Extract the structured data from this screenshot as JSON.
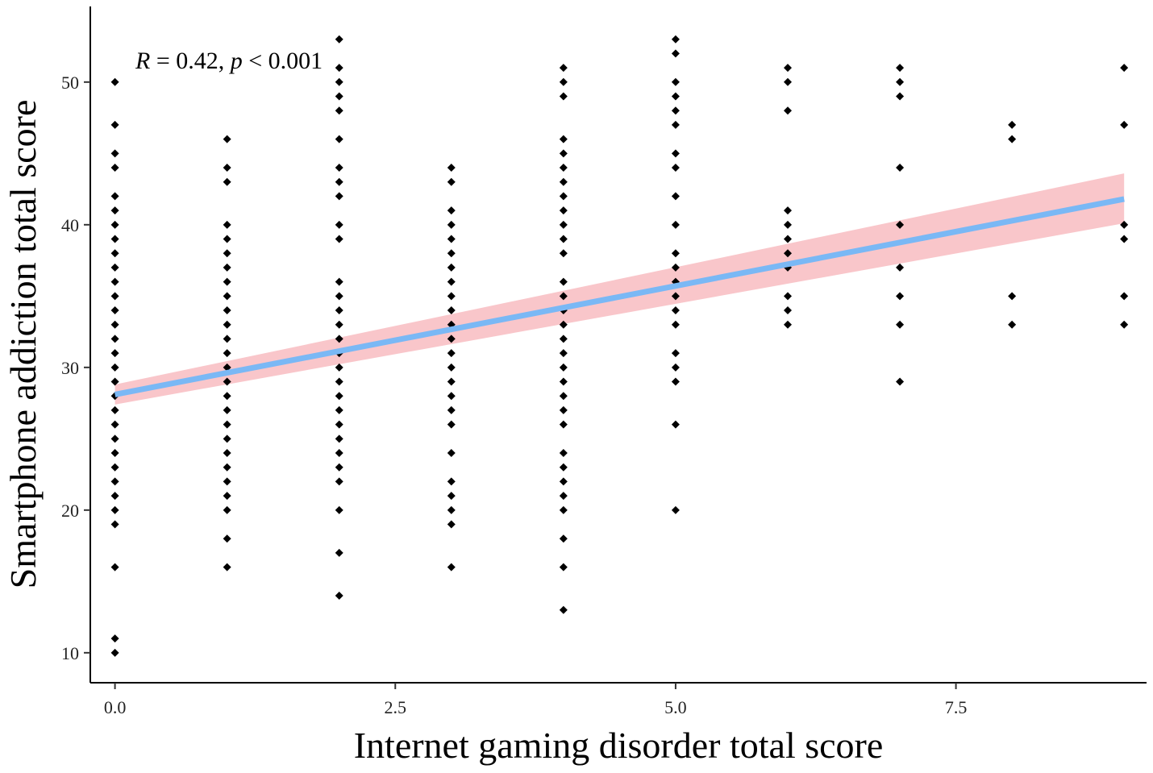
{
  "chart_data": {
    "type": "scatter",
    "xlabel": "Internet gaming disorder total score",
    "ylabel": "Smartphone addiction total score",
    "annotation": {
      "r_symbol": "R",
      "r_text": " = 0.42, ",
      "p_symbol": "p",
      "p_text": " < 0.001"
    },
    "xlim": [
      -0.22,
      9.2
    ],
    "ylim": [
      7.9,
      55.3
    ],
    "x_ticks": [
      0,
      2.5,
      5,
      7.5
    ],
    "x_tick_labels": [
      "0.0",
      "2.5",
      "5.0",
      "7.5"
    ],
    "y_ticks": [
      10,
      20,
      30,
      40,
      50
    ],
    "y_tick_labels": [
      "10",
      "20",
      "30",
      "40",
      "50"
    ],
    "grid": false,
    "point_color": "#000000",
    "line_color": "#7ab8f5",
    "band_color": "#f8c0c4",
    "fit_line": {
      "x": [
        0,
        9
      ],
      "y": [
        28.1,
        41.8
      ]
    },
    "confidence_band": {
      "x": [
        0,
        9
      ],
      "lower": [
        27.4,
        40.1
      ],
      "upper": [
        28.8,
        43.6
      ]
    },
    "points": [
      {
        "x": 0,
        "y": [
          10,
          11,
          16,
          19,
          20,
          21,
          22,
          23,
          24,
          25,
          26,
          27,
          28,
          29,
          30,
          31,
          32,
          33,
          34,
          35,
          36,
          37,
          38,
          39,
          40,
          41,
          42,
          44,
          45,
          47,
          50
        ]
      },
      {
        "x": 1,
        "y": [
          16,
          18,
          20,
          21,
          22,
          23,
          24,
          25,
          26,
          27,
          28,
          29,
          30,
          31,
          32,
          33,
          34,
          35,
          36,
          37,
          38,
          39,
          40,
          43,
          44,
          46
        ]
      },
      {
        "x": 2,
        "y": [
          14,
          17,
          20,
          22,
          23,
          24,
          25,
          26,
          27,
          28,
          29,
          30,
          31,
          32,
          33,
          34,
          35,
          36,
          39,
          40,
          42,
          43,
          44,
          46,
          48,
          49,
          50,
          51,
          53
        ]
      },
      {
        "x": 3,
        "y": [
          16,
          19,
          20,
          21,
          22,
          24,
          26,
          27,
          28,
          29,
          30,
          31,
          32,
          33,
          34,
          35,
          36,
          37,
          38,
          39,
          40,
          41,
          43,
          44
        ]
      },
      {
        "x": 4,
        "y": [
          13,
          16,
          18,
          20,
          21,
          22,
          23,
          24,
          26,
          27,
          28,
          29,
          30,
          31,
          32,
          33,
          34,
          35,
          36,
          38,
          39,
          40,
          41,
          42,
          43,
          44,
          45,
          46,
          49,
          50,
          51
        ]
      },
      {
        "x": 5,
        "y": [
          20,
          26,
          29,
          30,
          31,
          33,
          34,
          35,
          36,
          37,
          38,
          40,
          42,
          44,
          45,
          47,
          48,
          49,
          50,
          52,
          53
        ]
      },
      {
        "x": 6,
        "y": [
          33,
          34,
          35,
          37,
          38,
          39,
          40,
          41,
          48,
          50,
          51
        ]
      },
      {
        "x": 7,
        "y": [
          29,
          33,
          35,
          37,
          40,
          44,
          49,
          50,
          51
        ]
      },
      {
        "x": 8,
        "y": [
          33,
          35,
          46,
          47
        ]
      },
      {
        "x": 9,
        "y": [
          33,
          35,
          39,
          40,
          47,
          51
        ]
      }
    ]
  }
}
